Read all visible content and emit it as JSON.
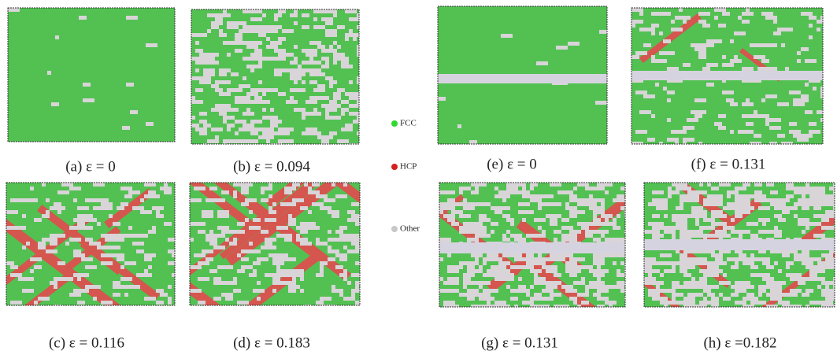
{
  "panels": [
    {
      "caption": "(a)  ε = 0"
    },
    {
      "caption": "(b)  ε = 0.094"
    },
    {
      "caption": "(c)  ε = 0.116"
    },
    {
      "caption": "(d)  ε  = 0.183"
    },
    {
      "caption": "(e) ε =  0"
    },
    {
      "caption": "(f) ε = 0.131"
    },
    {
      "caption": "(g) ε = 0.131"
    },
    {
      "caption": "(h) ε =0.182"
    }
  ],
  "legend": [
    {
      "label": "FCC",
      "color": "#2edb2e"
    },
    {
      "label": "HCP",
      "color": "#d42020"
    },
    {
      "label": "Other",
      "color": "#c8c8c8"
    }
  ]
}
